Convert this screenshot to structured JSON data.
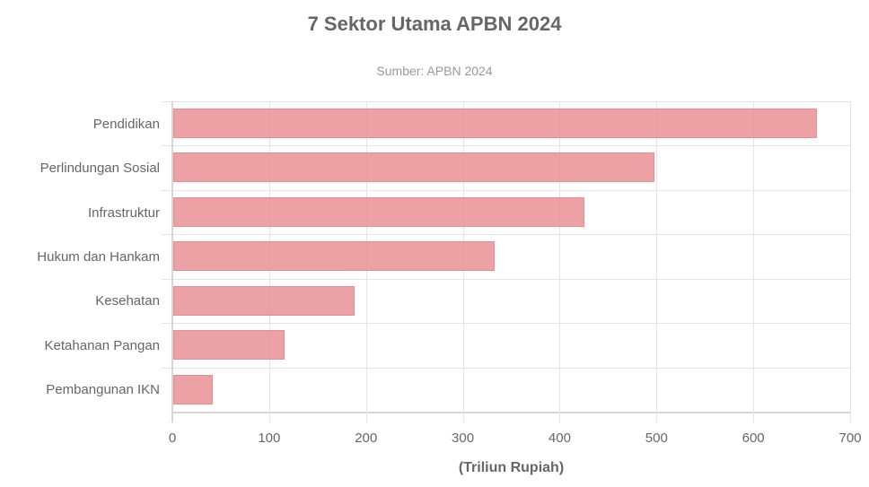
{
  "chart_data": {
    "type": "bar",
    "orientation": "horizontal",
    "title": "7 Sektor Utama APBN 2024",
    "subtitle": "Sumber: APBN 2024",
    "xlabel": "(Triliun Rupiah)",
    "ylabel": "",
    "categories": [
      "Pendidikan",
      "Perlindungan Sosial",
      "Infrastruktur",
      "Hukum dan Hankam",
      "Kesehatan",
      "Ketahanan Pangan",
      "Pembangunan IKN"
    ],
    "values": [
      665,
      497,
      425,
      332,
      187,
      115,
      41
    ],
    "xlim": [
      0,
      700
    ],
    "xticks": [
      "0",
      "100",
      "200",
      "300",
      "400",
      "500",
      "600",
      "700"
    ],
    "grid": true,
    "legend": null,
    "bar_color": "#e88c91"
  }
}
